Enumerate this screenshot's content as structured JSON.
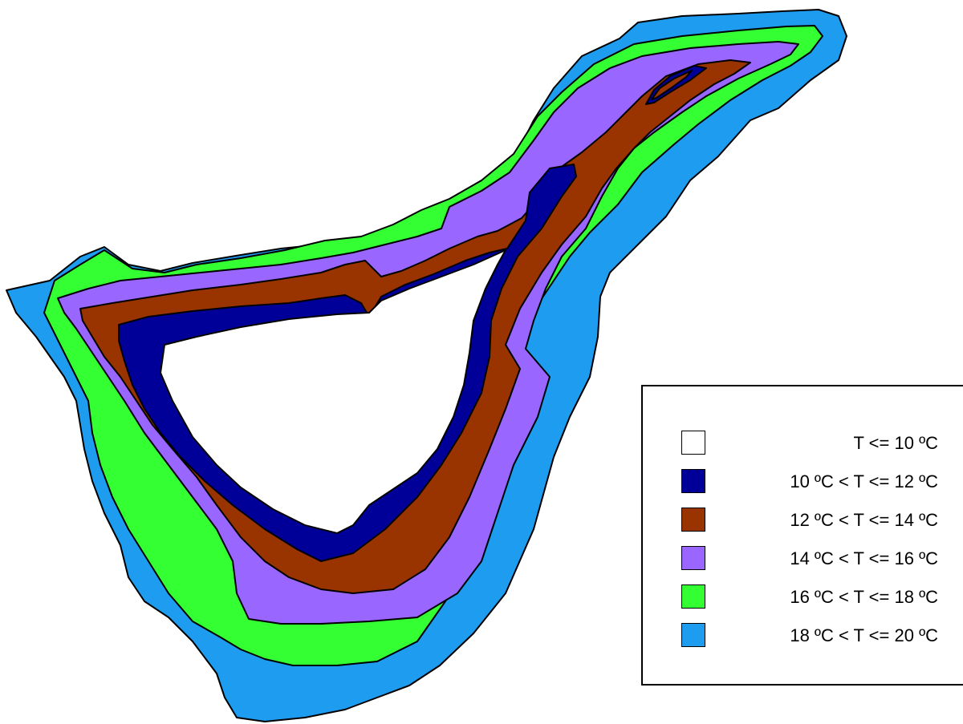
{
  "map": {
    "bands": [
      {
        "name": "band-18-20",
        "color": "#1e9cf0"
      },
      {
        "name": "band-16-18",
        "color": "#33ff33"
      },
      {
        "name": "band-14-16",
        "color": "#9966ff"
      },
      {
        "name": "band-12-14",
        "color": "#993300"
      },
      {
        "name": "band-10-12",
        "color": "#000099"
      },
      {
        "name": "band-le-10",
        "color": "#ffffff"
      }
    ]
  },
  "legend": {
    "items": [
      {
        "label": "T <= 10 ºC",
        "color": "#ffffff"
      },
      {
        "label": "10 ºC < T <= 12 ºC",
        "color": "#000099"
      },
      {
        "label": "12 ºC < T <= 14 ºC",
        "color": "#993300"
      },
      {
        "label": "14 ºC < T <= 16 ºC",
        "color": "#9966ff"
      },
      {
        "label": "16 ºC < T <= 18 ºC",
        "color": "#33ff33"
      },
      {
        "label": "18 ºC < T <= 20 ºC",
        "color": "#1e9cf0"
      }
    ]
  }
}
